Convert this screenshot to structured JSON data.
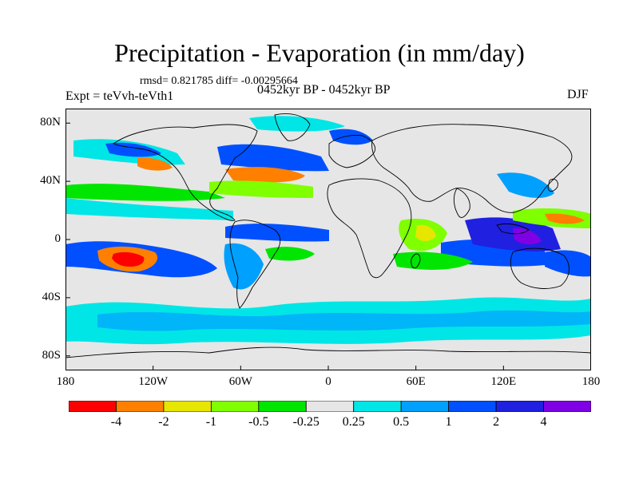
{
  "title": "Precipitation - Evaporation (in mm/day)",
  "stats": "rmsd= 0.821785 diff= -0.00295664",
  "experiment": "Expt = teVvh-teVth1",
  "period": "0452kyr BP - 0452kyr BP",
  "season": "DJF",
  "axes": {
    "y_ticks": [
      {
        "label": "80N",
        "lat": 80
      },
      {
        "label": "40N",
        "lat": 40
      },
      {
        "label": "0",
        "lat": 0
      },
      {
        "label": "40S",
        "lat": -40
      },
      {
        "label": "80S",
        "lat": -80
      }
    ],
    "x_ticks": [
      {
        "label": "180",
        "lon": -180
      },
      {
        "label": "120W",
        "lon": -120
      },
      {
        "label": "60W",
        "lon": -60
      },
      {
        "label": "0",
        "lon": 0
      },
      {
        "label": "60E",
        "lon": 60
      },
      {
        "label": "120E",
        "lon": 120
      },
      {
        "label": "180",
        "lon": 180
      }
    ]
  },
  "colorbar": {
    "colors": [
      "#ff0000",
      "#ff8000",
      "#e6e600",
      "#80ff00",
      "#00e600",
      "#e6e6e6",
      "#00e6e6",
      "#00a0ff",
      "#0050ff",
      "#2020e0",
      "#8000e6"
    ],
    "labels": [
      "-4",
      "-2",
      "-1",
      "-0.5",
      "-0.25",
      "0.25",
      "0.5",
      "1",
      "2",
      "4"
    ]
  }
}
